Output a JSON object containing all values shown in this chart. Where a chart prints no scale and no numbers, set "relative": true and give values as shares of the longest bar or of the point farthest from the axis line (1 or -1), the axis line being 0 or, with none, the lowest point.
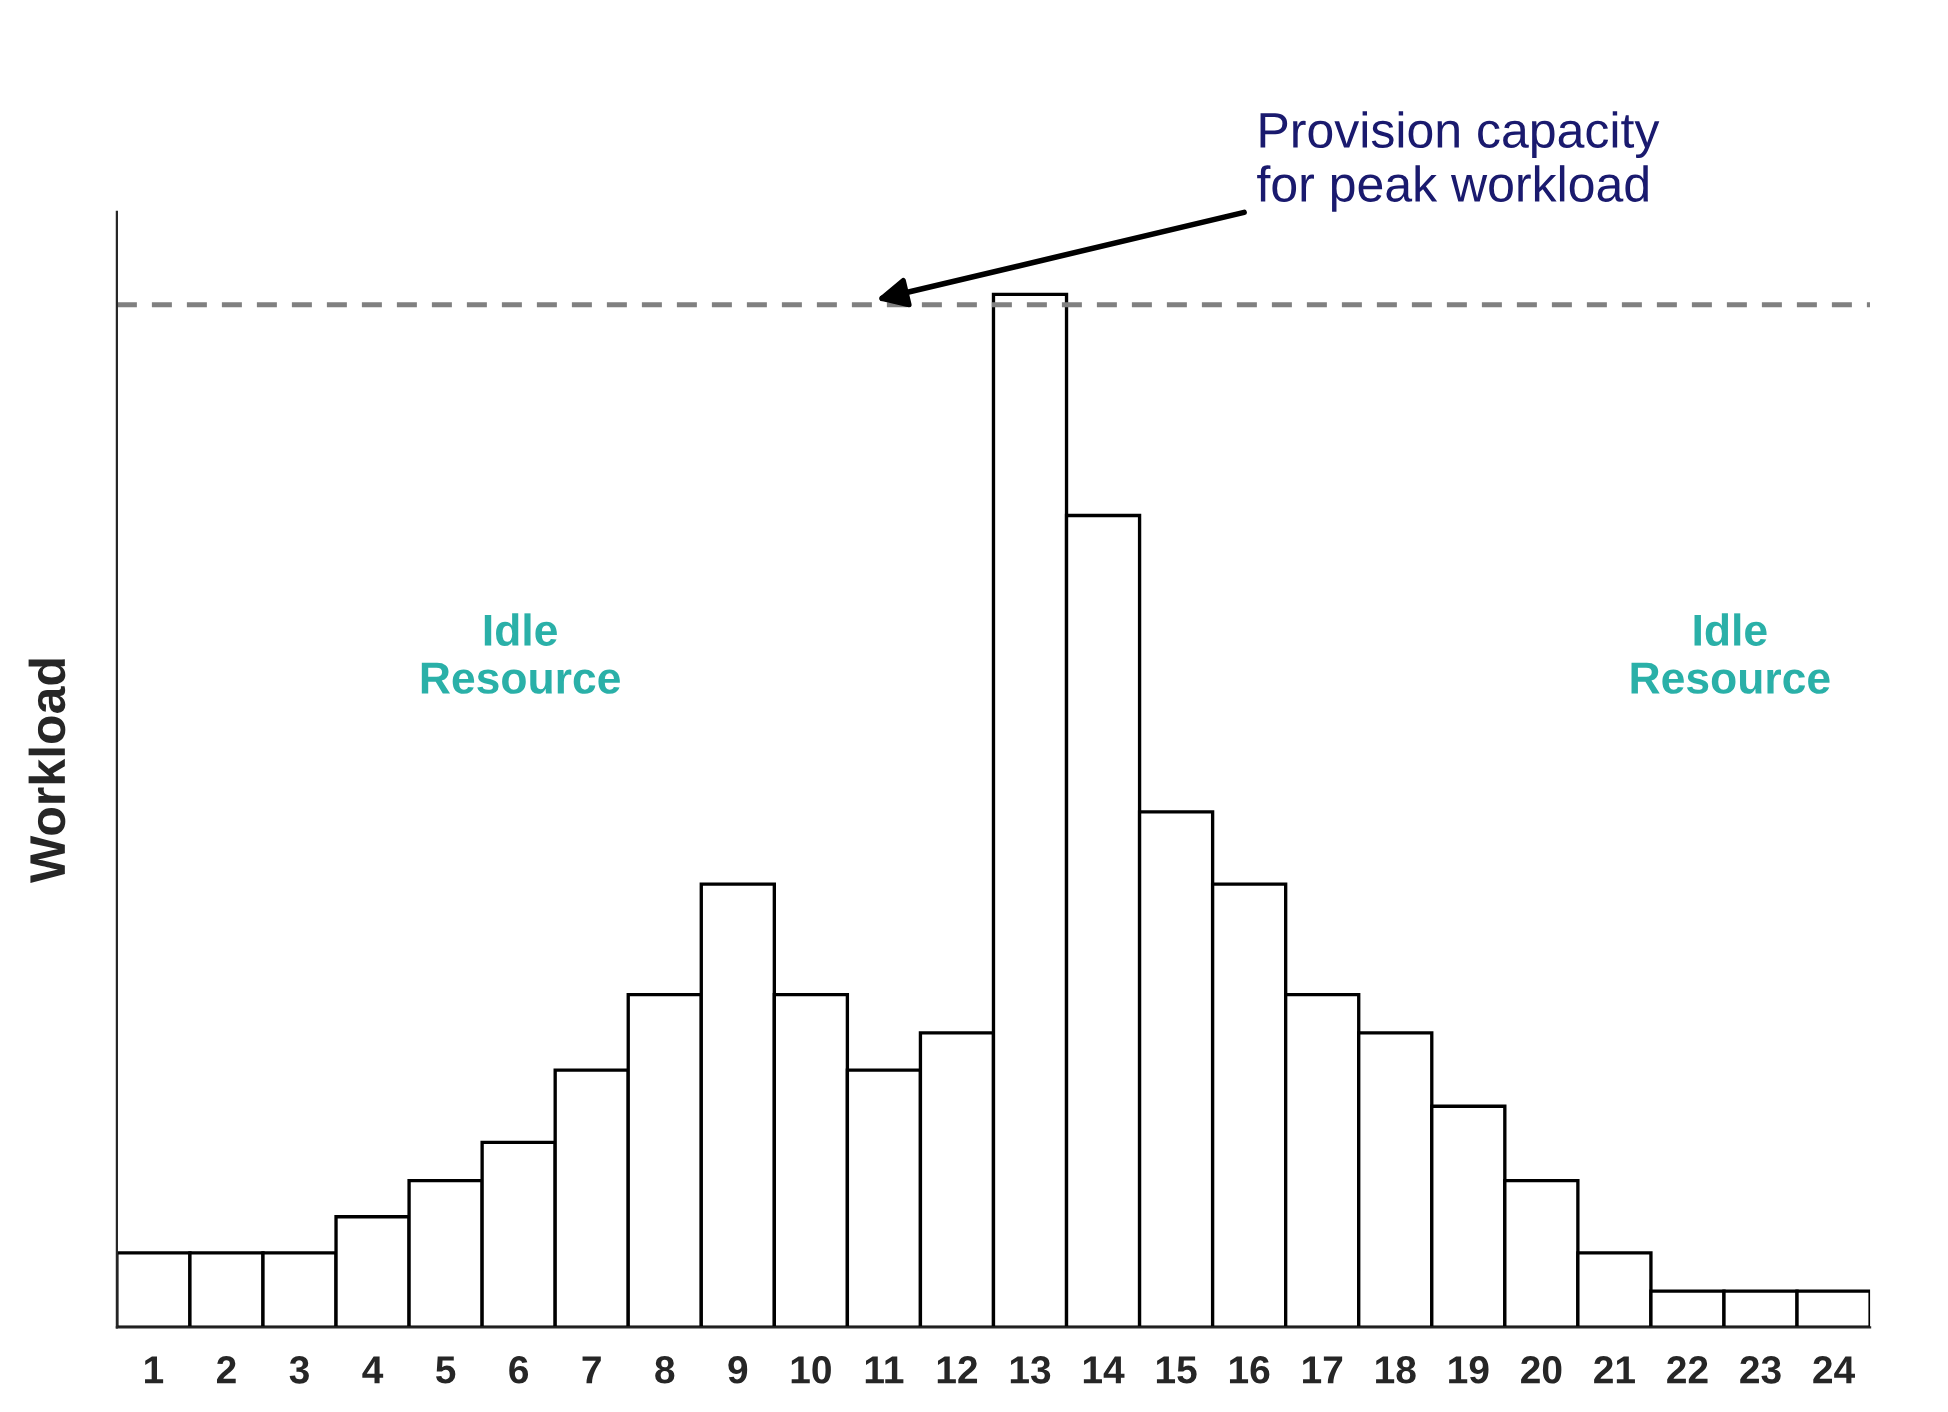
{
  "chart_data": {
    "type": "bar",
    "relative": true,
    "ylabel": "Workload",
    "categories": [
      "1",
      "2",
      "3",
      "4",
      "5",
      "6",
      "7",
      "8",
      "9",
      "10",
      "11",
      "12",
      "13",
      "14",
      "15",
      "16",
      "17",
      "18",
      "19",
      "20",
      "21",
      "22",
      "23",
      "24"
    ],
    "values": [
      0.072,
      0.072,
      0.072,
      0.107,
      0.142,
      0.179,
      0.249,
      0.322,
      0.429,
      0.322,
      0.249,
      0.285,
      1,
      0.786,
      0.499,
      0.429,
      0.322,
      0.285,
      0.214,
      0.142,
      0.072,
      0.035,
      0.035,
      0.035
    ],
    "color": "#ffffff",
    "ref_lines": [
      {
        "axis": "y",
        "value": 0.99,
        "color": "#808080",
        "line_style": "dashed"
      }
    ],
    "annotations": [
      "Provision capacity\nfor peak workload",
      "Idle\nResource",
      "Idle\nResource"
    ],
    "grid": false,
    "legend": false
  }
}
